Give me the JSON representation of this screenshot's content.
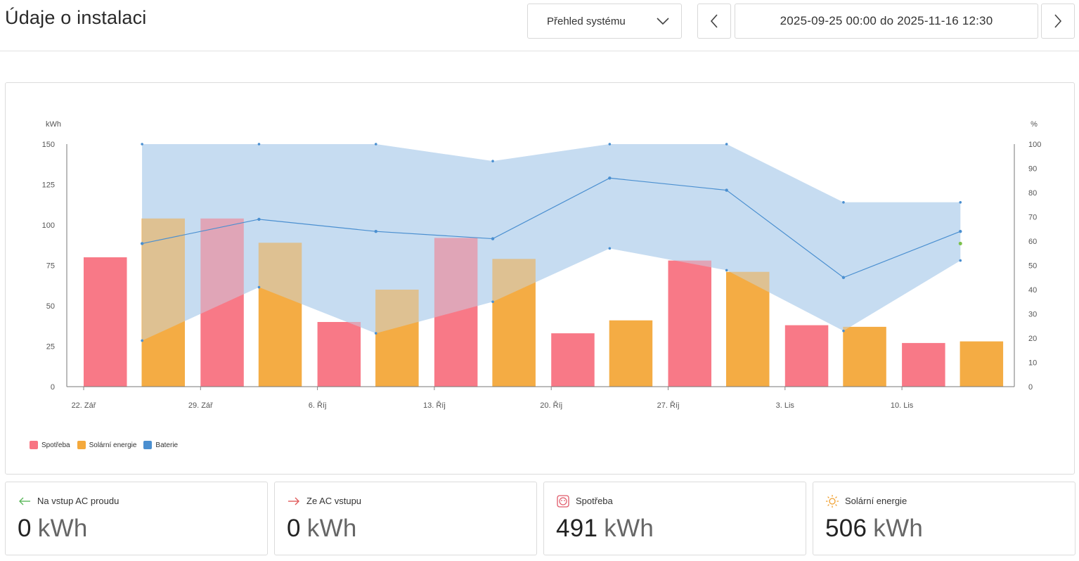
{
  "header": {
    "title": "Údaje o instalaci",
    "view_select": "Přehled systému",
    "date_range": "2025-09-25 00:00 do 2025-11-16 12:30"
  },
  "colors": {
    "consumption": "#f87482",
    "solar": "#f4a93c",
    "battery": "#4a8fd0",
    "battery_band": "#c6dcf1",
    "overlap": "#c07995",
    "solar_overlap": "#c1a071"
  },
  "chart_data": {
    "type": "bar",
    "left_unit": "kWh",
    "right_unit": "%",
    "y_left_ticks": [
      "0",
      "25",
      "50",
      "75",
      "100",
      "125",
      "150"
    ],
    "y_right_ticks": [
      "0",
      "10",
      "20",
      "30",
      "40",
      "50",
      "60",
      "70",
      "80",
      "90",
      "100"
    ],
    "ylim_left": [
      0,
      150
    ],
    "ylim_right": [
      0,
      100
    ],
    "x_ticks": [
      "22. Zář",
      "29. Zář",
      "6. Říj",
      "13. Říj",
      "20. Říj",
      "27. Říj",
      "3. Lis",
      "10. Lis"
    ],
    "series": [
      {
        "name": "Spotřeba",
        "values": [
          80,
          104,
          40,
          92,
          33,
          78,
          38,
          27
        ]
      },
      {
        "name": "Solární energie",
        "values": [
          104,
          89,
          60,
          79,
          41,
          71,
          37,
          28
        ]
      }
    ],
    "battery": {
      "name": "Baterie",
      "points_week_offset": [
        0.5,
        1.5,
        2.5,
        3.5,
        4.5,
        5.5,
        6.5,
        7.5
      ],
      "avg": [
        59,
        69,
        64,
        61,
        86,
        81,
        45,
        64
      ],
      "max": [
        100,
        100,
        100,
        93,
        100,
        100,
        76,
        76
      ],
      "min": [
        19,
        41,
        22,
        35,
        57,
        48,
        23,
        52
      ],
      "last_value": 59
    }
  },
  "legend": [
    {
      "label": "Spotřeba",
      "color": "#f87482"
    },
    {
      "label": "Solární energie",
      "color": "#f4a93c"
    },
    {
      "label": "Baterie",
      "color": "#4a8fd0"
    }
  ],
  "stats": [
    {
      "label": "Na vstup AC proudu",
      "value": "0",
      "unit": "kWh",
      "icon": "arrow-left-icon"
    },
    {
      "label": "Ze AC vstupu",
      "value": "0",
      "unit": "kWh",
      "icon": "arrow-right-icon"
    },
    {
      "label": "Spotřeba",
      "value": "491",
      "unit": "kWh",
      "icon": "socket-icon"
    },
    {
      "label": "Solární energie",
      "value": "506",
      "unit": "kWh",
      "icon": "sun-icon"
    }
  ]
}
